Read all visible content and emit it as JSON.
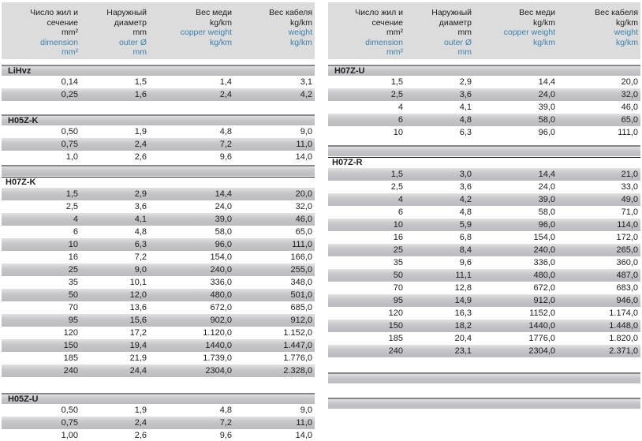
{
  "accent_blue": "#3a82ad",
  "header": {
    "columns": [
      {
        "ru": [
          "Число жил и",
          "сечение",
          "mm²"
        ],
        "en": [
          "dimension",
          "mm²"
        ]
      },
      {
        "ru": [
          "Наружный",
          "диаметр",
          "mm"
        ],
        "en": [
          "outer Ø",
          "mm"
        ]
      },
      {
        "ru": [
          "Вес меди",
          "kg/km"
        ],
        "en": [
          "copper weight",
          "kg/km"
        ]
      },
      {
        "ru": [
          "Вес кабеля",
          "kg/km"
        ],
        "en": [
          "weight",
          "kg/km"
        ]
      }
    ]
  },
  "panels": {
    "left": {
      "sections": [
        {
          "title": "LiHvz",
          "variant": "bar",
          "start": "white",
          "rows": [
            [
              "0,14",
              "1,5",
              "1,4",
              "3,1"
            ],
            [
              "0,25",
              "1,6",
              "2,4",
              "4,2"
            ]
          ]
        },
        {
          "title": "H05Z-K",
          "variant": "bar",
          "start": "white",
          "rows": [
            [
              "0,50",
              "1,9",
              "4,8",
              "9,0"
            ],
            [
              "0,75",
              "2,4",
              "7,2",
              "11,0"
            ],
            [
              "1,0",
              "2,6",
              "9,6",
              "14,0"
            ]
          ]
        },
        {
          "title": "H07Z-K",
          "variant": "rule",
          "start": "gray",
          "rows": [
            [
              "1,5",
              "2,9",
              "14,4",
              "20,0"
            ],
            [
              "2,5",
              "3,6",
              "24,0",
              "32,0"
            ],
            [
              "4",
              "4,1",
              "39,0",
              "46,0"
            ],
            [
              "6",
              "4,8",
              "58,0",
              "65,0"
            ],
            [
              "10",
              "6,3",
              "96,0",
              "111,0"
            ],
            [
              "16",
              "7,2",
              "154,0",
              "166,0"
            ],
            [
              "25",
              "9,0",
              "240,0",
              "255,0"
            ],
            [
              "35",
              "10,1",
              "336,0",
              "348,0"
            ],
            [
              "50",
              "12,0",
              "480,0",
              "501,0"
            ],
            [
              "70",
              "13,6",
              "672,0",
              "685,0"
            ],
            [
              "95",
              "15,6",
              "902,0",
              "912,0"
            ],
            [
              "120",
              "17,2",
              "1.120,0",
              "1.152,0"
            ],
            [
              "150",
              "19,4",
              "1440,0",
              "1.447,0"
            ],
            [
              "185",
              "21,9",
              "1.739,0",
              "1.776,0"
            ],
            [
              "240",
              "24,4",
              "2304,0",
              "2.328,0"
            ]
          ]
        },
        {
          "title": "H05Z-U",
          "variant": "bar",
          "start": "white",
          "rows": [
            [
              "0,50",
              "1,9",
              "4,8",
              "9,0"
            ],
            [
              "0,75",
              "2,4",
              "7,2",
              "11,0"
            ],
            [
              "1,00",
              "2,6",
              "9,6",
              "14,0"
            ]
          ]
        }
      ]
    },
    "right": {
      "sections": [
        {
          "title": "H07Z-U",
          "variant": "bar",
          "start": "white",
          "rows": [
            [
              "1,5",
              "2,9",
              "14,4",
              "20,0"
            ],
            [
              "2,5",
              "3,6",
              "24,0",
              "32,0"
            ],
            [
              "4",
              "4,1",
              "39,0",
              "46,0"
            ],
            [
              "6",
              "4,8",
              "58,0",
              "65,0"
            ],
            [
              "10",
              "6,3",
              "96,0",
              "111,0"
            ]
          ]
        },
        {
          "title": "H07Z-R",
          "variant": "rule",
          "start": "gray",
          "rows": [
            [
              "1,5",
              "3,0",
              "14,4",
              "21,0"
            ],
            [
              "2,5",
              "3,6",
              "24,0",
              "33,0"
            ],
            [
              "4",
              "4,2",
              "39,0",
              "49,0"
            ],
            [
              "6",
              "4,8",
              "58,0",
              "71,0"
            ],
            [
              "10",
              "5,9",
              "96,0",
              "114,0"
            ],
            [
              "16",
              "6,8",
              "154,0",
              "172,0"
            ],
            [
              "25",
              "8,4",
              "240,0",
              "265,0"
            ],
            [
              "35",
              "9,6",
              "336,0",
              "360,0"
            ],
            [
              "50",
              "11,1",
              "480,0",
              "487,0"
            ],
            [
              "70",
              "12,8",
              "672,0",
              "683,0"
            ],
            [
              "95",
              "14,9",
              "912,0",
              "946,0"
            ],
            [
              "120",
              "16,3",
              "1152,0",
              "1.174,0"
            ],
            [
              "150",
              "18,2",
              "1440,0",
              "1.448,0"
            ],
            [
              "185",
              "20,4",
              "1776,0",
              "1.820,0"
            ],
            [
              "240",
              "23,1",
              "2304,0",
              "2.371,0"
            ]
          ]
        },
        {
          "title": "",
          "variant": "empty",
          "rows": []
        },
        {
          "title": "",
          "variant": "empty",
          "rows": []
        }
      ]
    }
  }
}
